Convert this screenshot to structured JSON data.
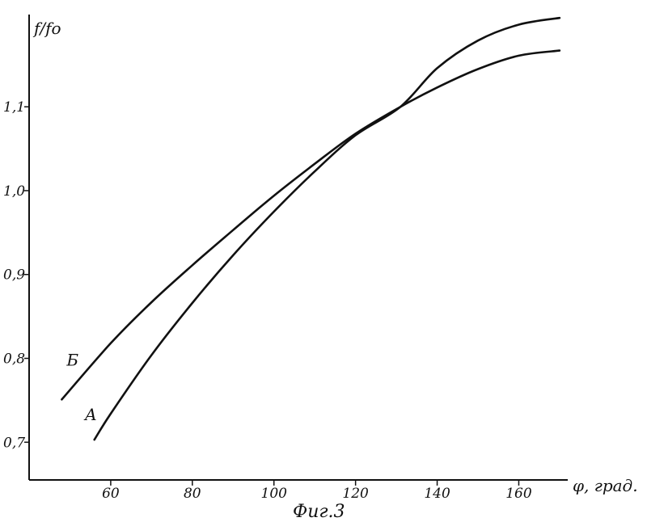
{
  "chart_data": {
    "type": "line",
    "xlabel": "φ, град.",
    "ylabel": "f/fo",
    "caption": "Фиг.3",
    "xlim": [
      40,
      172
    ],
    "ylim": [
      0.655,
      1.21
    ],
    "xticks": [
      60,
      80,
      100,
      120,
      140,
      160
    ],
    "xtick_labels": [
      "60",
      "80",
      "100",
      "120",
      "140",
      "160"
    ],
    "yticks": [
      0.7,
      0.8,
      0.9,
      1.0,
      1.1
    ],
    "ytick_labels": [
      "0,7",
      "0,8",
      "0,9",
      "1,0",
      "1,1"
    ],
    "grid": false,
    "series": [
      {
        "name": "Б",
        "x": [
          48,
          60,
          70,
          80,
          90,
          100,
          110,
          120,
          131,
          140,
          150,
          160,
          170
        ],
        "y": [
          0.751,
          0.818,
          0.867,
          0.911,
          0.953,
          0.994,
          1.032,
          1.068,
          1.1,
          1.123,
          1.145,
          1.161,
          1.167
        ]
      },
      {
        "name": "А",
        "x": [
          56,
          60,
          70,
          80,
          90,
          100,
          110,
          120,
          131,
          140,
          150,
          160,
          170
        ],
        "y": [
          0.703,
          0.734,
          0.804,
          0.866,
          0.923,
          0.975,
          1.023,
          1.066,
          1.1,
          1.146,
          1.179,
          1.198,
          1.206
        ]
      }
    ]
  }
}
